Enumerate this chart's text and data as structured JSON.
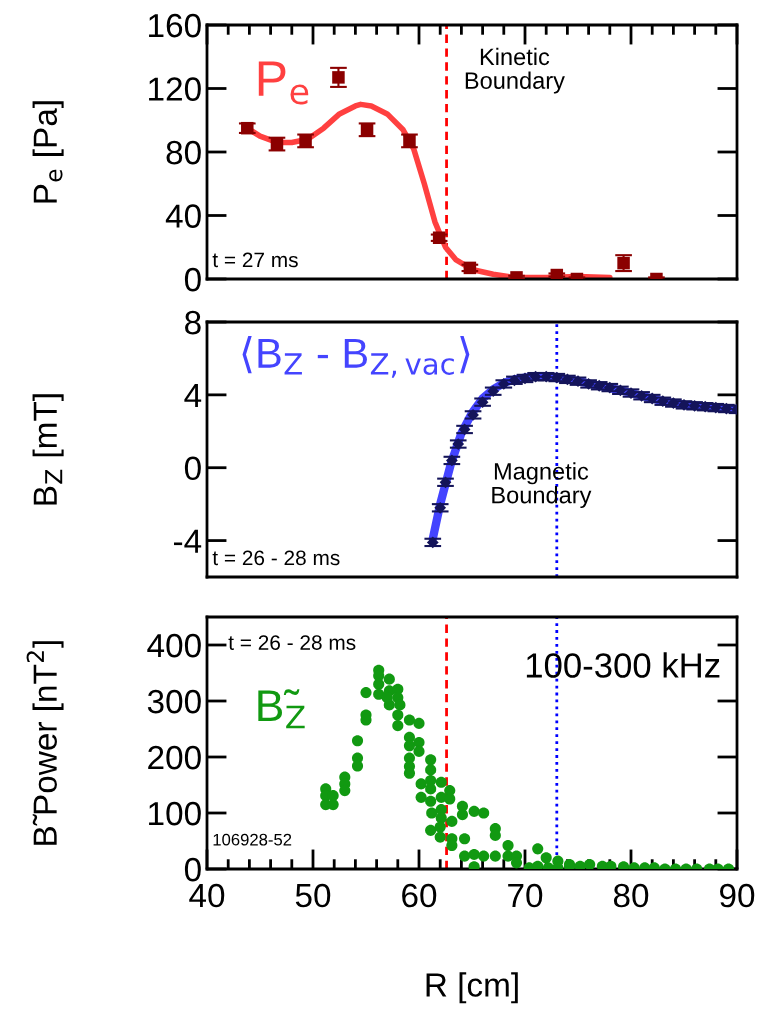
{
  "chart_data": [
    {
      "type": "line",
      "ylabel": "P$_{e}$ [Pa]",
      "xlim": [
        40,
        90
      ],
      "ylim": [
        0,
        160
      ],
      "yticks": [
        0,
        40,
        80,
        120,
        160
      ],
      "tick_labels": "y",
      "grid": false,
      "legend": false,
      "annotations": [
        "t = 27 ms"
      ],
      "ref_lines": [
        {
          "axis": "x",
          "value": 62.6,
          "label": "Kinetic\nBoundary",
          "color": "#ff0000",
          "line_style": "dashed"
        }
      ],
      "series": [
        {
          "type": "scatter",
          "marker": "square",
          "color": "#8b0000",
          "x": [
            43.8,
            46.6,
            49.3,
            52.4,
            55.1,
            59.1,
            61.9,
            64.8,
            69.2,
            73.0,
            74.9,
            79.3,
            82.4
          ],
          "values": [
            95,
            85,
            87,
            127,
            94,
            87,
            26,
            7,
            1,
            2.5,
            0,
            10,
            0
          ],
          "errors": [
            3,
            4,
            4,
            6,
            4,
            4,
            2,
            2,
            1,
            1,
            1,
            5,
            1
          ]
        },
        {
          "name": "P$_{e}$",
          "color": "#ff4040",
          "x": [
            43.8,
            45,
            46.6,
            48,
            49.5,
            51,
            52.5,
            54,
            54.5,
            55.5,
            57,
            58.5,
            59.5,
            60.5,
            61.5,
            62.5,
            63.5,
            65,
            67,
            69,
            72,
            75,
            78
          ],
          "values": [
            95,
            90,
            86,
            86,
            88,
            95,
            104,
            109,
            110,
            109,
            104,
            94,
            82,
            60,
            36,
            20,
            12,
            6,
            3,
            1,
            1,
            1.5,
            1
          ]
        }
      ]
    },
    {
      "type": "line",
      "ylabel": "B$_{Z}$ [mT]",
      "xlim": [
        40,
        90
      ],
      "ylim": [
        -6,
        8
      ],
      "yticks": [
        -4,
        0,
        4,
        8
      ],
      "tick_labels": "y",
      "grid": false,
      "legend": false,
      "annotations": [
        "t = 26 - 28 ms"
      ],
      "ref_lines": [
        {
          "axis": "x",
          "value": 73,
          "label": "Magnetic\nBoundary",
          "color": "#0000ff",
          "line_style": "dotted"
        }
      ],
      "series": [
        {
          "name": "⟨B$_{Z}$ - B$_{Z,vac}$⟩",
          "color": "#4444ff",
          "x": [
            61.3,
            62,
            63,
            64,
            65,
            66,
            67,
            68,
            69,
            70,
            71,
            72,
            73,
            75,
            77,
            79,
            81,
            83,
            85,
            87,
            90
          ],
          "values": [
            -3.9,
            -2.0,
            0.2,
            1.9,
            3.0,
            3.8,
            4.3,
            4.65,
            4.85,
            4.95,
            5.0,
            5.0,
            4.95,
            4.75,
            4.5,
            4.25,
            3.95,
            3.65,
            3.45,
            3.35,
            3.2
          ]
        },
        {
          "type": "scatter",
          "marker": "diamond",
          "color": "#14145a",
          "x": [
            61.3,
            62.0,
            62.5,
            63.1,
            63.7,
            64.3,
            65.1,
            66,
            67,
            68,
            69,
            70,
            71,
            72,
            73,
            74,
            75,
            76,
            77,
            78,
            79,
            80,
            81,
            82,
            83,
            84,
            85,
            86,
            87,
            88,
            89,
            90
          ],
          "values": [
            -4.1,
            -2.2,
            -0.8,
            0.4,
            1.3,
            2.1,
            2.9,
            3.6,
            4.2,
            4.6,
            4.8,
            4.9,
            5.0,
            5.0,
            4.95,
            4.85,
            4.75,
            4.6,
            4.5,
            4.4,
            4.25,
            4.1,
            3.95,
            3.8,
            3.65,
            3.55,
            3.45,
            3.4,
            3.35,
            3.3,
            3.25,
            3.2
          ],
          "errors": [
            0.2,
            0.2,
            0.2,
            0.2,
            0.2,
            0.2,
            0.2,
            0.2,
            0.2,
            0.2,
            0.2,
            0.2,
            0.2,
            0.2,
            0.2,
            0.2,
            0.2,
            0.2,
            0.2,
            0.2,
            0.2,
            0.2,
            0.2,
            0.2,
            0.2,
            0.2,
            0.2,
            0.2,
            0.2,
            0.2,
            0.2,
            0.2
          ]
        }
      ]
    },
    {
      "type": "scatter",
      "ylabel": "B̃ Power [nT$^{2}$]",
      "xlabel": "R [cm]",
      "xlim": [
        40,
        90
      ],
      "xticks": [
        40,
        50,
        60,
        70,
        80,
        90
      ],
      "ylim": [
        0,
        450
      ],
      "yticks": [
        0,
        100,
        200,
        300,
        400
      ],
      "grid": false,
      "legend": false,
      "annotations": [
        "t = 26 - 28 ms",
        "100-300 kHz",
        "106928-52"
      ],
      "ref_lines": [
        {
          "axis": "x",
          "value": 62.6,
          "color": "#ff0000",
          "line_style": "dashed"
        },
        {
          "axis": "x",
          "value": 73,
          "color": "#0000ff",
          "line_style": "dotted"
        }
      ],
      "series": [
        {
          "marker": "circle",
          "name": "B̃$_{Z}$",
          "color": "#119911",
          "x": [
            51.2,
            51.2,
            51.2,
            51.9,
            51.9,
            53.0,
            53.0,
            53.0,
            54.2,
            54.2,
            54.2,
            55.0,
            55.0,
            55.0,
            56.2,
            56.2,
            56.2,
            56.2,
            57.2,
            57.2,
            57.2,
            57.0,
            58.0,
            58.0,
            58.2,
            58.0,
            58.0,
            59.1,
            60.0,
            59.1,
            59.1,
            60.0,
            60.0,
            59.1,
            59.1,
            59.1,
            60.2,
            60.2,
            61.1,
            61.1,
            61.1,
            61.1,
            61.1,
            61.2,
            61.1,
            62.1,
            62.1,
            62.1,
            62.1,
            62.0,
            62.0,
            62.9,
            62.9,
            63.1,
            63.1,
            63.1,
            64.1,
            64.1,
            64.3,
            64.3,
            65.2,
            66.1,
            65.2,
            65.2,
            66.1,
            67.2,
            67.2,
            67.2,
            68.4,
            68.4,
            69.2,
            69.2,
            70.4,
            71.2,
            71.2,
            72.0,
            72.2,
            73.1,
            73.1,
            74.2,
            74.2,
            75.2,
            76.1,
            77.3,
            78.1,
            79.3,
            80.3,
            81.3,
            82.2,
            83.2,
            84.2,
            85.2,
            86.2,
            87.4,
            88.2,
            89.2
          ],
          "values": [
            143,
            131,
            115,
            131,
            115,
            164,
            152,
            140,
            229,
            198,
            184,
            315,
            275,
            266,
            355,
            345,
            330,
            312,
            339,
            318,
            293,
            306,
            321,
            306,
            293,
            275,
            256,
            266,
            260,
            235,
            220,
            226,
            210,
            198,
            183,
            171,
            152,
            128,
            195,
            177,
            158,
            143,
            121,
            100,
            69,
            155,
            128,
            106,
            91,
            75,
            57,
            140,
            125,
            85,
            54,
            42,
            112,
            97,
            54,
            23,
            103,
            100,
            26,
            4,
            23,
            72,
            60,
            23,
            42,
            23,
            23,
            11,
            2,
            36,
            5,
            20,
            2,
            14,
            2,
            8,
            4,
            5,
            8,
            5,
            5,
            4,
            2,
            2,
            2,
            0,
            0,
            0,
            0,
            0,
            0,
            0
          ]
        }
      ]
    }
  ]
}
